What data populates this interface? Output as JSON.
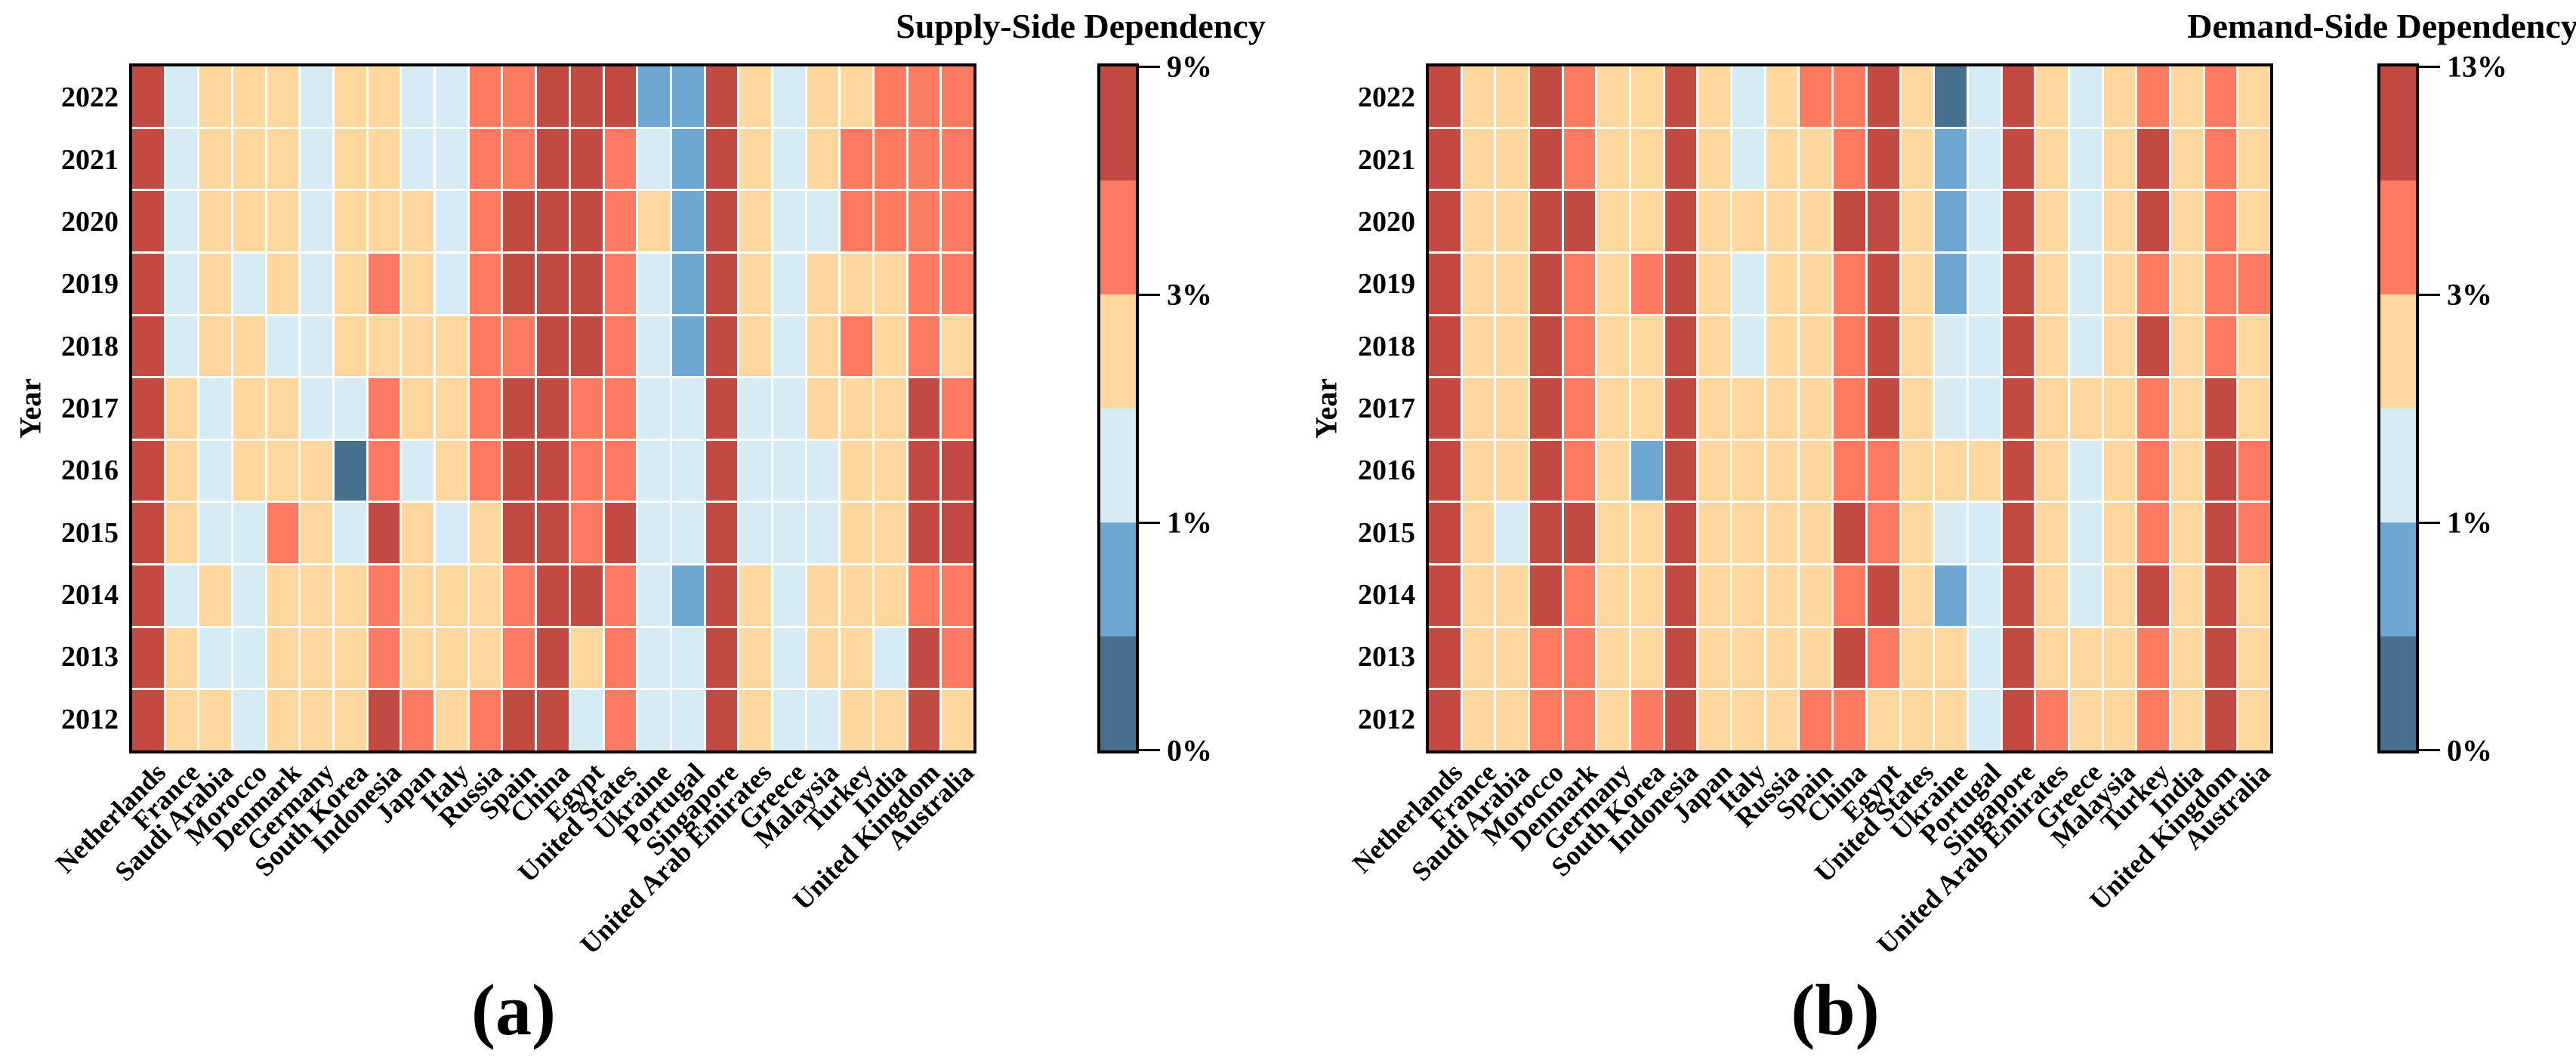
{
  "figure_title": "",
  "years_top_to_bottom": [
    "2022",
    "2021",
    "2020",
    "2019",
    "2018",
    "2017",
    "2016",
    "2015",
    "2014",
    "2013",
    "2012"
  ],
  "countries": [
    "Netherlands",
    "France",
    "Saudi Arabia",
    "Morocco",
    "Denmark",
    "Germany",
    "South Korea",
    "Indonesia",
    "Japan",
    "Italy",
    "Russia",
    "Spain",
    "China",
    "Egypt",
    "United States",
    "Ukraine",
    "Portugal",
    "Singapore",
    "United Arab Emirates",
    "Greece",
    "Malaysia",
    "Turkey",
    "India",
    "United Kingdom",
    "Australia"
  ],
  "palette": {
    "R": "#c24a42",
    "O": "#fc7a61",
    "Y": "#fdd79e",
    "C": "#d7ebf4",
    "B": "#6ea7d2",
    "D": "#47708f"
  },
  "color_class_meaning": {
    "R": "highest dependency bin",
    "O": "high bin (above 3%)",
    "Y": "medium bin (up to 3%)",
    "C": "low-medium bin (above 1%)",
    "B": "low bin (up to 1%)",
    "D": "lowest bin (near 0%)"
  },
  "chart_data": [
    {
      "id": "a",
      "type": "heatmap",
      "caption": "(a)",
      "ylabel": "Year",
      "rows": [
        "2022",
        "2021",
        "2020",
        "2019",
        "2018",
        "2017",
        "2016",
        "2015",
        "2014",
        "2013",
        "2012"
      ],
      "columns": [
        "Netherlands",
        "France",
        "Saudi Arabia",
        "Morocco",
        "Denmark",
        "Germany",
        "South Korea",
        "Indonesia",
        "Japan",
        "Italy",
        "Russia",
        "Spain",
        "China",
        "Egypt",
        "United States",
        "Ukraine",
        "Portugal",
        "Singapore",
        "United Arab Emirates",
        "Greece",
        "Malaysia",
        "Turkey",
        "India",
        "United Kingdom",
        "Australia"
      ],
      "grid_color_classes": [
        "RCYYYCYYCCOORRRBBRYCYYOOO",
        "RCYYYCYYCCOORROCBRYCYOOOO",
        "RCYYYCYYYCORRROYBRYCCOOOO",
        "RCYCYCYOYCORRROCBRYCYYYOO",
        "RCYYCCYYYYOORROCBRYCYOYOY",
        "RYCYYCCOYYORROOCCRCCYYYRO",
        "RYCYYYDOCYORROOCCRCCCYYRR",
        "RYCCOYCRYCYRRORCCRCCCYYRR",
        "RCYCYYYOYYYORROCBRYCYYYOO",
        "RYCCYYYOYYYORYOCCRYCYYCRO",
        "RYYCYYYROYORRCOCCRYCCYYRY"
      ],
      "value_bins_pct_approx": {
        "D": "0-0.5",
        "B": "0.5-1",
        "C": "1-2",
        "Y": "2-3",
        "O": "3-6",
        "R": "6-9"
      },
      "legend": {
        "title": "Supply-Side Dependency",
        "position": "right",
        "segments_top_to_bottom": [
          "R",
          "O",
          "Y",
          "C",
          "B",
          "D"
        ],
        "ticks": [
          {
            "label": "9%",
            "frac_from_top": 0
          },
          {
            "label": "3%",
            "frac_from_top": 0.3333
          },
          {
            "label": "1%",
            "frac_from_top": 0.6667
          },
          {
            "label": "0%",
            "frac_from_top": 1
          }
        ]
      }
    },
    {
      "id": "b",
      "type": "heatmap",
      "caption": "(b)",
      "ylabel": "Year",
      "rows": [
        "2022",
        "2021",
        "2020",
        "2019",
        "2018",
        "2017",
        "2016",
        "2015",
        "2014",
        "2013",
        "2012"
      ],
      "columns": [
        "Netherlands",
        "France",
        "Saudi Arabia",
        "Morocco",
        "Denmark",
        "Germany",
        "South Korea",
        "Indonesia",
        "Japan",
        "Italy",
        "Russia",
        "Spain",
        "China",
        "Egypt",
        "United States",
        "Ukraine",
        "Portugal",
        "Singapore",
        "United Arab Emirates",
        "Greece",
        "Malaysia",
        "Turkey",
        "India",
        "United Kingdom",
        "Australia"
      ],
      "grid_color_classes": [
        "RYYROYYRYCYOORYDCRYCYOYOY",
        "RYYROYYRYCYYORYBCRYCYRYOY",
        "RYYRRYYRYYYYRRYBCRYCYRYOY",
        "RYYROYORYCYYORYBCRYCYOYOO",
        "RYYROYYRYCYYORYCCRYCYRYOY",
        "RYYROYYRYYYYORYCCRYYYOYRY",
        "RYYROYBRYYYYOOYYYRYCYOYRO",
        "RYCRRYYRYYYYROYCCRYCYOYRO",
        "RYYROYYRYYYYORYBCRYCYRYRY",
        "RYYOOYYRYYYYROYYCRYYYOYRY",
        "RYYOOYORYYYOOYYYCROYYOYRY"
      ],
      "value_bins_pct_approx": {
        "D": "0-0.5",
        "B": "0.5-1",
        "C": "1-2",
        "Y": "2-3",
        "O": "3-8",
        "R": "8-13"
      },
      "legend": {
        "title": "Demand-Side Dependency",
        "position": "right",
        "segments_top_to_bottom": [
          "R",
          "O",
          "Y",
          "C",
          "B",
          "D"
        ],
        "ticks": [
          {
            "label": "13%",
            "frac_from_top": 0
          },
          {
            "label": "3%",
            "frac_from_top": 0.3333
          },
          {
            "label": "1%",
            "frac_from_top": 0.6667
          },
          {
            "label": "0%",
            "frac_from_top": 1
          }
        ]
      }
    }
  ]
}
